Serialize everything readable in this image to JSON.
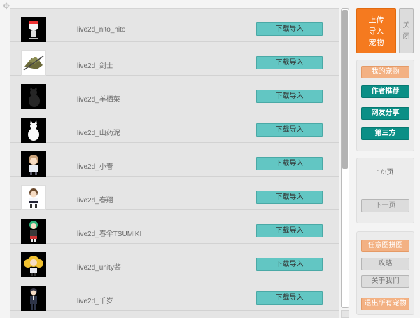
{
  "rows": [
    {
      "name": "live2d_nito_nito",
      "button": "下载导入",
      "thumb": "white-character-thumbnail"
    },
    {
      "name": "live2d_剑士",
      "button": "下载导入",
      "thumb": "swordsman-thumbnail"
    },
    {
      "name": "live2d_羊栖菜",
      "button": "下载导入",
      "thumb": "black-cat-thumbnail"
    },
    {
      "name": "live2d_山药泥",
      "button": "下载导入",
      "thumb": "white-cat-thumbnail"
    },
    {
      "name": "live2d_小春",
      "button": "下载导入",
      "thumb": "girl-thumbnail"
    },
    {
      "name": "live2d_春翔",
      "button": "下载导入",
      "thumb": "boy-thumbnail"
    },
    {
      "name": "live2d_春伞TSUMIKI",
      "button": "下载导入",
      "thumb": "green-hair-girl-thumbnail"
    },
    {
      "name": "live2d_unity酱",
      "button": "下载导入",
      "thumb": "unity-chan-thumbnail"
    },
    {
      "name": "live2d_千岁",
      "button": "下载导入",
      "thumb": "dark-suit-thumbnail"
    }
  ],
  "side": {
    "upload_label": "上传\n导入\n宠物",
    "close_label": "关\n闭",
    "tabs": [
      "我的宠物",
      "作者推荐",
      "网友分享",
      "第三方"
    ],
    "page_label": "1/3页",
    "next_label": "下一页",
    "misc": [
      "任意图拼图",
      "攻略",
      "关于我们",
      "退出所有宠物"
    ]
  },
  "colors": {
    "accent_orange": "#f57a1f",
    "download_teal": "#62c6c3",
    "tab_teal": "#0b8f86",
    "tab_peach": "#f3b183"
  }
}
